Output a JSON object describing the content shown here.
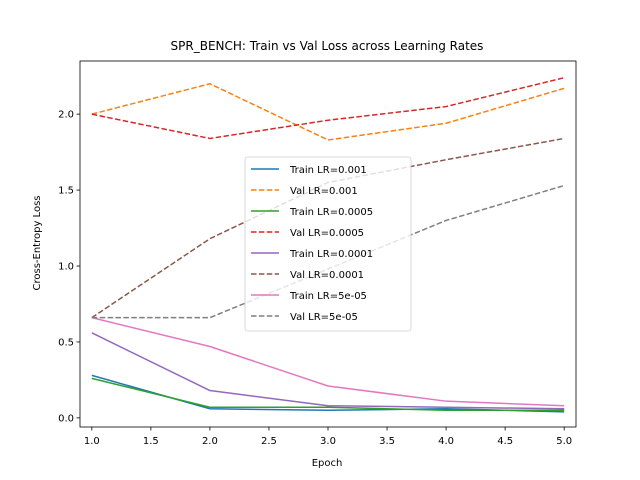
{
  "chart_data": {
    "type": "line",
    "title": "SPR_BENCH: Train vs Val Loss across Learning Rates",
    "xlabel": "Epoch",
    "ylabel": "Cross-Entropy Loss",
    "xlim": [
      0.9,
      5.1
    ],
    "ylim": [
      -0.06,
      2.35
    ],
    "xticks": [
      1.0,
      1.5,
      2.0,
      2.5,
      3.0,
      3.5,
      4.0,
      4.5,
      5.0
    ],
    "xtick_labels": [
      "1.0",
      "1.5",
      "2.0",
      "2.5",
      "3.0",
      "3.5",
      "4.0",
      "4.5",
      "5.0"
    ],
    "yticks": [
      0.0,
      0.5,
      1.0,
      1.5,
      2.0
    ],
    "ytick_labels": [
      "0.0",
      "0.5",
      "1.0",
      "1.5",
      "2.0"
    ],
    "grid": false,
    "legend_position": "center",
    "x": [
      1,
      2,
      3,
      4,
      5
    ],
    "series": [
      {
        "name": "Train LR=0.001",
        "color": "#1f77b4",
        "style": "solid",
        "values": [
          0.28,
          0.06,
          0.05,
          0.06,
          0.04
        ]
      },
      {
        "name": "Val LR=0.001",
        "color": "#ff7f0e",
        "style": "dashed",
        "values": [
          2.0,
          2.2,
          1.83,
          1.94,
          2.17
        ]
      },
      {
        "name": "Train LR=0.0005",
        "color": "#2ca02c",
        "style": "solid",
        "values": [
          0.26,
          0.07,
          0.07,
          0.05,
          0.05
        ]
      },
      {
        "name": "Val LR=0.0005",
        "color": "#d62728",
        "style": "dashed",
        "values": [
          2.0,
          1.84,
          1.96,
          2.05,
          2.24
        ]
      },
      {
        "name": "Train LR=0.0001",
        "color": "#9467bd",
        "style": "solid",
        "values": [
          0.56,
          0.18,
          0.08,
          0.07,
          0.06
        ]
      },
      {
        "name": "Val LR=0.0001",
        "color": "#8c564b",
        "style": "dashed",
        "values": [
          0.66,
          1.18,
          1.55,
          1.7,
          1.84
        ]
      },
      {
        "name": "Train LR=5e-05",
        "color": "#e377c2",
        "style": "solid",
        "values": [
          0.66,
          0.47,
          0.21,
          0.11,
          0.08
        ]
      },
      {
        "name": "Val LR=5e-05",
        "color": "#7f7f7f",
        "style": "dashed",
        "values": [
          0.66,
          0.66,
          0.98,
          1.3,
          1.53
        ]
      }
    ]
  }
}
